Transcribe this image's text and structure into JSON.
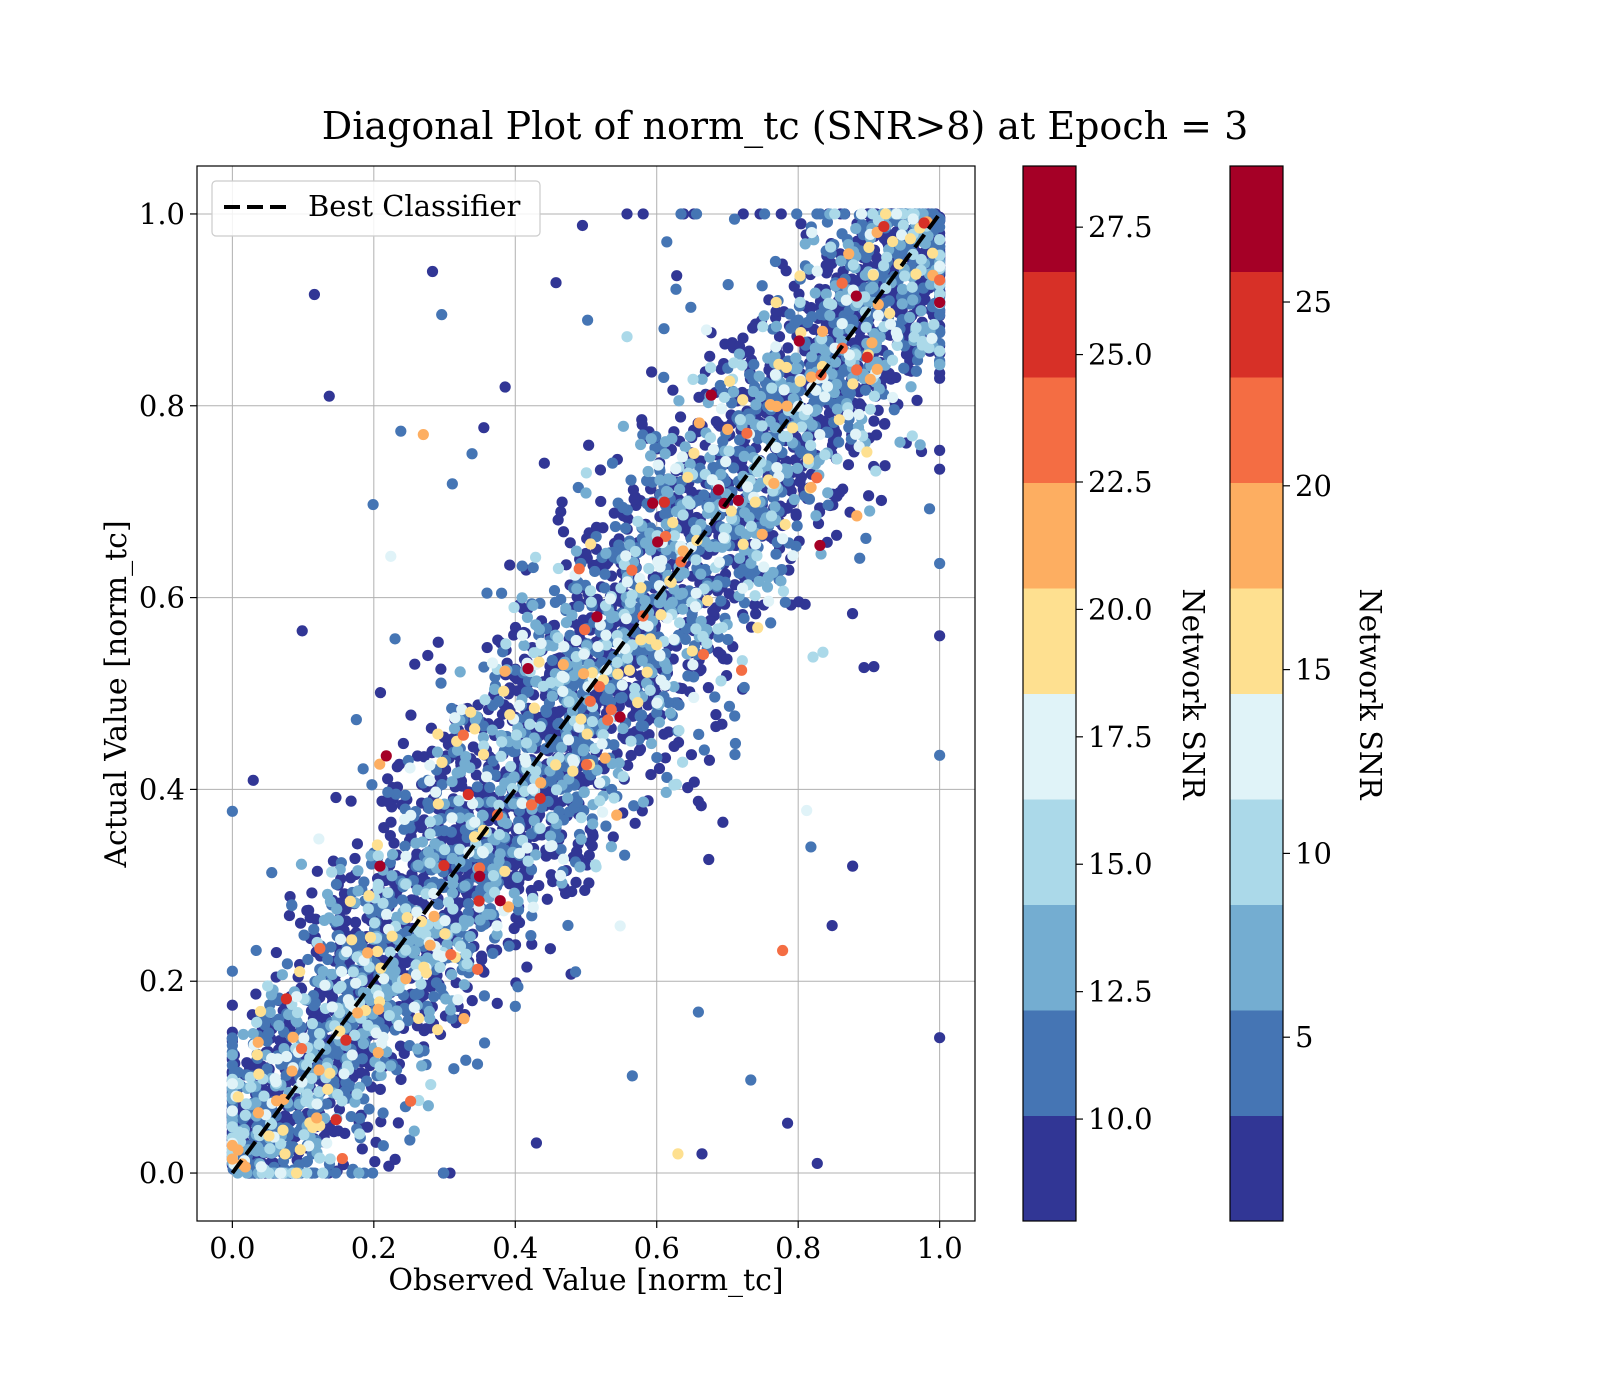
{
  "chart_data": {
    "type": "scatter",
    "title": "Diagonal Plot of norm_tc (SNR>8) at Epoch = 3",
    "xlabel": "Observed Value [norm_tc]",
    "ylabel": "Actual Value [norm_tc]",
    "xlim": [
      -0.05,
      1.05
    ],
    "ylim": [
      -0.05,
      1.05
    ],
    "xticks": [
      "0.0",
      "0.2",
      "0.4",
      "0.6",
      "0.8",
      "1.0"
    ],
    "yticks": [
      "0.0",
      "0.2",
      "0.4",
      "0.6",
      "0.8",
      "1.0"
    ],
    "xtick_values": [
      0.0,
      0.2,
      0.4,
      0.6,
      0.8,
      1.0
    ],
    "ytick_values": [
      0.0,
      0.2,
      0.4,
      0.6,
      0.8,
      1.0
    ],
    "grid": true,
    "legend": {
      "position": "top-left",
      "entries": [
        "Best Classifier"
      ]
    },
    "reference_line": {
      "name": "Best Classifier",
      "style": "dashed",
      "color": "#000000",
      "x": [
        0,
        1
      ],
      "y": [
        0,
        1
      ]
    },
    "colorbars": [
      {
        "label": "Network SNR",
        "range": [
          8,
          28.7
        ],
        "ticks": [
          "10.0",
          "12.5",
          "15.0",
          "17.5",
          "20.0",
          "22.5",
          "25.0",
          "27.5"
        ],
        "tick_values": [
          10.0,
          12.5,
          15.0,
          17.5,
          20.0,
          22.5,
          25.0,
          27.5
        ]
      },
      {
        "label": "Network SNR",
        "range": [
          0,
          28.7
        ],
        "ticks": [
          "5",
          "10",
          "15",
          "20",
          "25"
        ],
        "tick_values": [
          5,
          10,
          15,
          20,
          25
        ]
      }
    ],
    "colormap": [
      "#313695",
      "#4575b4",
      "#74add1",
      "#abd9e9",
      "#e0f3f8",
      "#fee090",
      "#fdae61",
      "#f46d43",
      "#d73027",
      "#a50026"
    ],
    "colormap_levels": 10,
    "scatter_summary": {
      "points": "dense band of several thousand points along y = x, spread roughly ±0.12, with sparse outliers",
      "color_variable": "Network SNR",
      "sample_outliers": [
        {
          "x": 0.116,
          "y": 0.916,
          "snr": 9
        },
        {
          "x": 0.137,
          "y": 0.81,
          "snr": 9
        },
        {
          "x": 0.283,
          "y": 0.94,
          "snr": 9
        },
        {
          "x": 0.296,
          "y": 0.895,
          "snr": 11
        },
        {
          "x": 0.495,
          "y": 0.988,
          "snr": 9
        },
        {
          "x": 0.27,
          "y": 0.77,
          "snr": 21
        },
        {
          "x": 0.199,
          "y": 0.697,
          "snr": 11
        },
        {
          "x": 0.224,
          "y": 0.643,
          "snr": 18
        },
        {
          "x": 0.778,
          "y": 0.232,
          "snr": 23
        },
        {
          "x": 0.827,
          "y": 0.01,
          "snr": 9
        },
        {
          "x": 0.664,
          "y": 0.02,
          "snr": 9
        },
        {
          "x": 0.63,
          "y": 0.02,
          "snr": 20
        },
        {
          "x": 0.848,
          "y": 0.258,
          "snr": 9
        },
        {
          "x": 0.907,
          "y": 0.528,
          "snr": 9
        },
        {
          "x": 0.877,
          "y": 0.32,
          "snr": 9
        },
        {
          "x": 0.785,
          "y": 0.052,
          "snr": 9
        },
        {
          "x": 0.733,
          "y": 0.097,
          "snr": 11
        },
        {
          "x": 0.818,
          "y": 0.34,
          "snr": 12
        },
        {
          "x": 0.812,
          "y": 0.378,
          "snr": 18
        },
        {
          "x": 0.821,
          "y": 0.538,
          "snr": 15
        },
        {
          "x": 0.835,
          "y": 0.543,
          "snr": 16
        },
        {
          "x": 0.887,
          "y": 0.641,
          "snr": 11
        },
        {
          "x": 0.944,
          "y": 0.762,
          "snr": 13
        },
        {
          "x": 0.558,
          "y": 0.872,
          "snr": 15
        },
        {
          "x": 0.418,
          "y": 0.526,
          "snr": 27
        }
      ]
    }
  }
}
